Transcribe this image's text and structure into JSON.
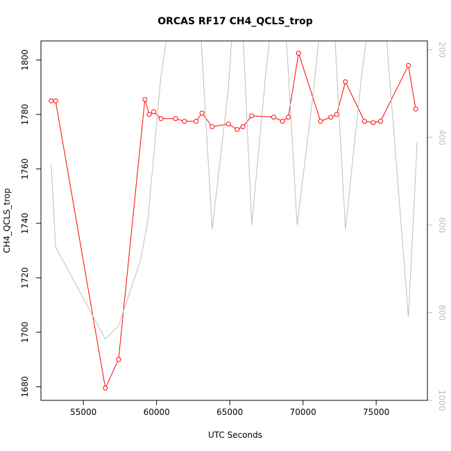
{
  "chart_data": {
    "type": "line",
    "title": "ORCAS RF17 CH4_QCLS_trop",
    "xlabel": "UTC Seconds",
    "ylabel": "CH4_QCLS_trop",
    "xlim": [
      52100,
      78500
    ],
    "ylim": [
      1675,
      1807
    ],
    "y2lim": [
      1000,
      180
    ],
    "x_ticks": [
      55000,
      60000,
      65000,
      70000,
      75000
    ],
    "y_ticks": [
      1680,
      1700,
      1720,
      1740,
      1760,
      1780,
      1800
    ],
    "y2_ticks": [
      200,
      400,
      600,
      800,
      1000
    ],
    "series": [
      {
        "color": "#ff0000",
        "marker": "open-circle",
        "axis": "left",
        "x": [
          52800,
          53100,
          56500,
          57400,
          59200,
          59500,
          59800,
          60300,
          61300,
          61900,
          62700,
          63100,
          63800,
          64900,
          65500,
          65900,
          66500,
          68000,
          68600,
          69000,
          69700,
          71200,
          71900,
          72300,
          72900,
          74200,
          74800,
          75300,
          77200,
          77700
        ],
        "y": [
          1785,
          1785,
          1679.5,
          1690,
          1785.5,
          1780,
          1781,
          1778.5,
          1778.5,
          1777.5,
          1777.5,
          1780.5,
          1775.5,
          1776.5,
          1774.5,
          1775.5,
          1779.5,
          1779,
          1777.5,
          1779,
          1802.5,
          1777.5,
          1779,
          1780,
          1792,
          1777.5,
          1777,
          1777.5,
          1798,
          1782
        ]
      },
      {
        "color": "#bebebe",
        "marker": "none",
        "axis": "right",
        "x": [
          52800,
          53100,
          56500,
          57400,
          58900,
          59400,
          60300,
          61800,
          62800,
          63800,
          64900,
          65600,
          66500,
          67500,
          68500,
          69600,
          70700,
          71800,
          72900,
          74000,
          75200,
          77200,
          77800
        ],
        "y": [
          460,
          650,
          860,
          830,
          680,
          590,
          260,
          -80,
          40,
          610,
          290,
          -60,
          600,
          240,
          -40,
          600,
          300,
          -60,
          610,
          260,
          -40,
          810,
          410
        ]
      }
    ]
  }
}
